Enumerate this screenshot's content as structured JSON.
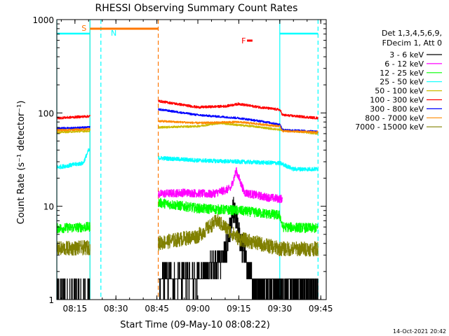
{
  "chart_data": {
    "type": "line",
    "title": "RHESSI Observing Summary Count Rates",
    "xlabel": "Start Time (09-May-10 08:08:22)",
    "ylabel": "Count Rate (s⁻¹ detector⁻¹)",
    "y_scale": "log",
    "ylim": [
      1,
      1000
    ],
    "xlim": [
      "08:08:22",
      "09:47:00"
    ],
    "x_ticks": [
      "08:15",
      "08:30",
      "08:45",
      "09:00",
      "09:15",
      "09:30",
      "09:45"
    ],
    "y_ticks": [
      "1",
      "10",
      "100",
      "1000"
    ],
    "legend": {
      "position": "right",
      "header": [
        "Det 1,3,4,5,6,9,",
        "FDecim 1, Att 0"
      ]
    },
    "footer_date": "14-Oct-2021 20:42",
    "segments": [
      [
        "08:08:22",
        "08:20:30"
      ],
      [
        "08:45:30",
        "09:44:00"
      ]
    ],
    "series": [
      {
        "name": "3 - 6 keV",
        "color": "#000000",
        "x": [
          "08:08",
          "08:20",
          "08:45",
          "09:00",
          "09:10",
          "09:13",
          "09:15",
          "09:20",
          "09:30",
          "09:44"
        ],
        "values": [
          1.0,
          1.0,
          1.6,
          1.7,
          3.0,
          9.0,
          5.0,
          1.5,
          1.3,
          1.3
        ]
      },
      {
        "name": "6 - 12 keV",
        "color": "#ff00ff",
        "x": [
          "08:45",
          "08:55",
          "09:05",
          "09:12",
          "09:14",
          "09:17",
          "09:25",
          "09:30",
          "09:31"
        ],
        "values": [
          13.5,
          14.0,
          13.5,
          15.5,
          24.0,
          14.0,
          12.5,
          12.0,
          12.0
        ]
      },
      {
        "name": "12 - 25 keV",
        "color": "#00ff00",
        "x": [
          "08:08",
          "08:20",
          "08:45",
          "09:00",
          "09:15",
          "09:30",
          "09:31",
          "09:44"
        ],
        "values": [
          5.8,
          6.0,
          11.0,
          9.5,
          9.0,
          8.0,
          6.0,
          5.8
        ]
      },
      {
        "name": "25 - 50 keV",
        "color": "#00ffff",
        "x": [
          "08:08",
          "08:18",
          "08:20",
          "08:45",
          "09:00",
          "09:15",
          "09:30",
          "09:35",
          "09:44"
        ],
        "values": [
          26.0,
          29.0,
          40.0,
          33.0,
          31.0,
          30.0,
          29.0,
          25.0,
          25.0
        ]
      },
      {
        "name": "50 - 100 keV",
        "color": "#ccbb00",
        "x": [
          "08:08",
          "08:20",
          "08:45",
          "09:00",
          "09:08",
          "09:15",
          "09:20",
          "09:30",
          "09:44"
        ],
        "values": [
          62.0,
          64.0,
          70.0,
          72.0,
          78.0,
          74.0,
          72.0,
          66.0,
          60.0
        ]
      },
      {
        "name": "100 - 300 keV",
        "color": "#ff0000",
        "x": [
          "08:08",
          "08:20",
          "08:45",
          "09:00",
          "09:10",
          "09:15",
          "09:20",
          "09:30",
          "09:31",
          "09:44"
        ],
        "values": [
          88.0,
          92.0,
          135.0,
          115.0,
          118.0,
          125.0,
          118.0,
          108.0,
          95.0,
          88.0
        ]
      },
      {
        "name": "300 - 800 keV",
        "color": "#0000ff",
        "x": [
          "08:08",
          "08:20",
          "08:45",
          "09:00",
          "09:15",
          "09:25",
          "09:30",
          "09:31",
          "09:44"
        ],
        "values": [
          68.0,
          70.0,
          110.0,
          95.0,
          88.0,
          80.0,
          75.0,
          66.0,
          63.0
        ]
      },
      {
        "name": "800 - 7000 keV",
        "color": "#ff8800",
        "x": [
          "08:08",
          "08:20",
          "08:45",
          "09:00",
          "09:15",
          "09:30",
          "09:31",
          "09:44"
        ],
        "values": [
          65.0,
          67.0,
          82.0,
          78.0,
          80.0,
          72.0,
          64.0,
          62.0
        ]
      },
      {
        "name": "7000 - 15000 keV",
        "color": "#808000",
        "x": [
          "08:08",
          "08:20",
          "08:45",
          "09:00",
          "09:07",
          "09:15",
          "09:30",
          "09:44"
        ],
        "values": [
          3.5,
          3.6,
          4.0,
          4.8,
          7.0,
          4.5,
          3.5,
          3.5
        ]
      }
    ],
    "flags": [
      {
        "label": "S",
        "color": "#ff7700",
        "start": "08:20:30",
        "end": "08:45:30",
        "row": "top"
      },
      {
        "label": "N",
        "color": "#00ffff",
        "start": "08:08:22",
        "end": "08:20:30",
        "row": "middle"
      },
      {
        "label": "N",
        "color": "#00ffff",
        "start": "09:30:00",
        "end": "09:44:00",
        "row": "middle"
      },
      {
        "label": "F",
        "color": "#ff0000",
        "start": "09:18:00",
        "end": "09:20:00",
        "row": "lower"
      }
    ],
    "vertical_markers": [
      {
        "time": "08:20:30",
        "color": "#ff7700",
        "style": "solid"
      },
      {
        "time": "08:45:30",
        "color": "#ff7700",
        "style": "dashed"
      },
      {
        "time": "08:08:22",
        "color": "#00ffff",
        "style": "solid"
      },
      {
        "time": "08:20:30",
        "color": "#00ffff",
        "style": "solid"
      },
      {
        "time": "08:24:30",
        "color": "#00ffff",
        "style": "dashed"
      },
      {
        "time": "09:30:00",
        "color": "#00ffff",
        "style": "solid"
      },
      {
        "time": "09:44:00",
        "color": "#00ffff",
        "style": "dashed"
      }
    ]
  }
}
